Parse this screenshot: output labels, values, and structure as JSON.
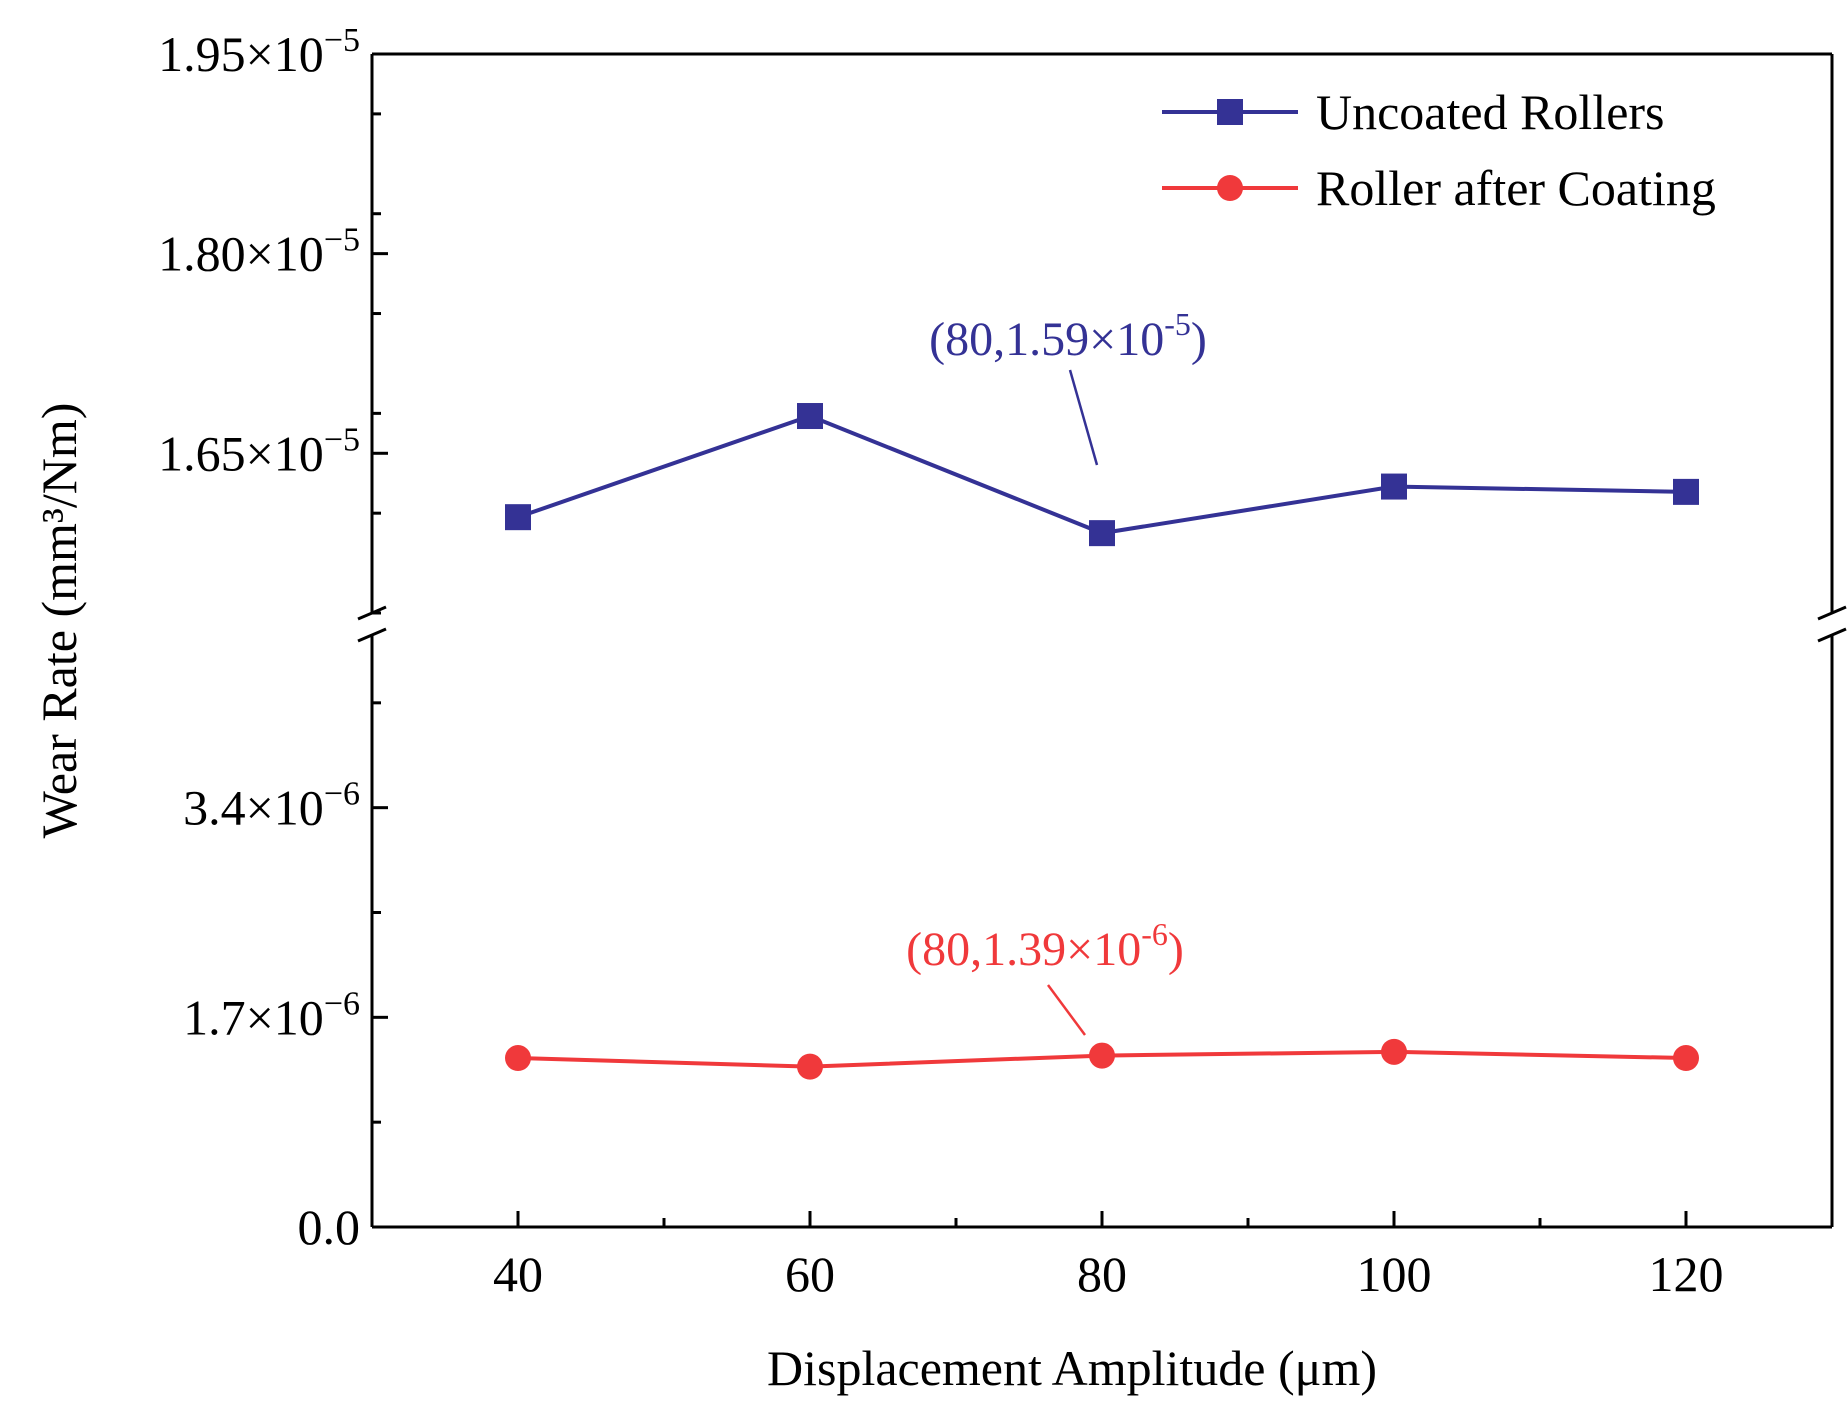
{
  "chart_data": {
    "type": "line",
    "title": "",
    "xlabel": "Displacement Amplitude (μm)",
    "ylabel": "Wear Rate (mm³/Nm)",
    "y_axis_break": true,
    "xlim": [
      30,
      130
    ],
    "x_ticks": [
      40,
      60,
      80,
      100,
      120
    ],
    "x_tick_labels": [
      "40",
      "60",
      "80",
      "100",
      "120"
    ],
    "upper_segment": {
      "ylim": [
        1.53e-05,
        1.95e-05
      ],
      "ticks": [
        1.65e-05,
        1.8e-05,
        1.95e-05
      ],
      "tick_mantissas": [
        "1.65×10",
        "1.80×10",
        "1.95×10"
      ],
      "tick_exponents": [
        "−5",
        "−5",
        "−5"
      ]
    },
    "lower_segment": {
      "ylim": [
        0,
        4.8e-06
      ],
      "ticks": [
        0,
        1.7e-06,
        3.4e-06
      ],
      "tick_mantissas": [
        "0.0",
        "1.7×10",
        "3.4×10"
      ],
      "tick_exponents": [
        "",
        "−6",
        "−6"
      ]
    },
    "x": [
      40,
      60,
      80,
      100,
      120
    ],
    "series": [
      {
        "name": "Uncoated Rollers",
        "color": "#343295",
        "marker": "square",
        "segment": "upper",
        "values": [
          1.602e-05,
          1.678e-05,
          1.59e-05,
          1.625e-05,
          1.621e-05
        ]
      },
      {
        "name": "Roller after Coating",
        "color": "#f0393b",
        "marker": "circle",
        "segment": "lower",
        "values": [
          1.37e-06,
          1.3e-06,
          1.39e-06,
          1.42e-06,
          1.37e-06
        ]
      }
    ],
    "annotations": [
      {
        "series": 0,
        "point_x": 80,
        "text": "(80,1.59×10",
        "superscript": "-5",
        "close": ")",
        "color": "#343295"
      },
      {
        "series": 1,
        "point_x": 80,
        "text": "(80,1.39×10",
        "superscript": "-6",
        "close": ")",
        "color": "#f0393b"
      }
    ],
    "legend": {
      "position": "top-right",
      "entries": [
        "Uncoated Rollers",
        "Roller after Coating"
      ]
    }
  }
}
